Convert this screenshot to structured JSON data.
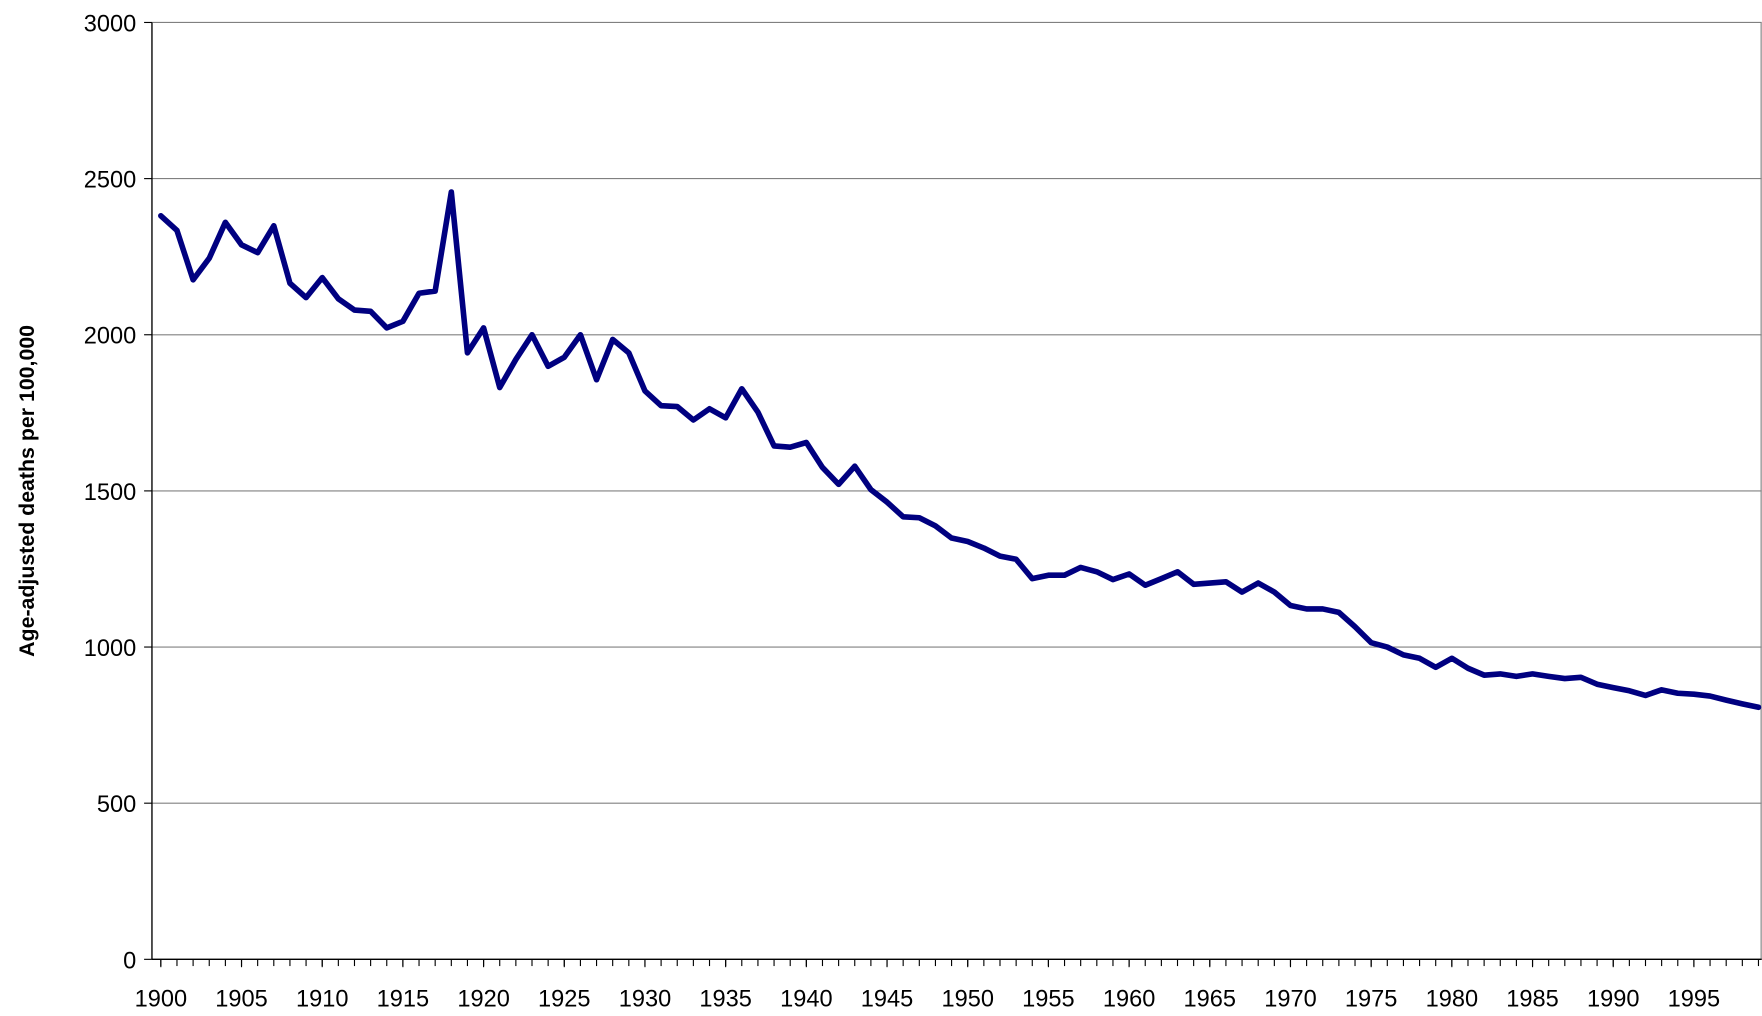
{
  "chart_data": {
    "type": "line",
    "y_label": "Age-adjusted deaths per 100,000",
    "color": "#000080",
    "grid": true,
    "x": [
      1900,
      1901,
      1902,
      1903,
      1904,
      1905,
      1906,
      1907,
      1908,
      1909,
      1910,
      1911,
      1912,
      1913,
      1914,
      1915,
      1916,
      1917,
      1918,
      1919,
      1920,
      1921,
      1922,
      1923,
      1924,
      1925,
      1926,
      1927,
      1928,
      1929,
      1930,
      1931,
      1932,
      1933,
      1934,
      1935,
      1936,
      1937,
      1938,
      1939,
      1940,
      1941,
      1942,
      1943,
      1944,
      1945,
      1946,
      1947,
      1948,
      1949,
      1950,
      1951,
      1952,
      1953,
      1954,
      1955,
      1956,
      1957,
      1958,
      1959,
      1960,
      1961,
      1962,
      1963,
      1964,
      1965,
      1966,
      1967,
      1968,
      1969,
      1970,
      1971,
      1972,
      1973,
      1974,
      1975,
      1976,
      1977,
      1978,
      1979,
      1980,
      1981,
      1982,
      1983,
      1984,
      1985,
      1986,
      1987,
      1988,
      1989,
      1990,
      1991,
      1992,
      1993,
      1994,
      1995,
      1996,
      1997,
      1998,
      1999
    ],
    "values": [
      2381,
      2334,
      2176,
      2245,
      2360,
      2288,
      2263,
      2349,
      2165,
      2119,
      2183,
      2115,
      2079,
      2075,
      2022,
      2043,
      2133,
      2140,
      2457,
      1942,
      2022,
      1831,
      1921,
      2000,
      1899,
      1928,
      2000,
      1856,
      1985,
      1942,
      1820,
      1773,
      1770,
      1727,
      1763,
      1734,
      1827,
      1752,
      1644,
      1640,
      1655,
      1575,
      1521,
      1579,
      1504,
      1464,
      1417,
      1414,
      1388,
      1349,
      1338,
      1317,
      1291,
      1281,
      1219,
      1230,
      1230,
      1255,
      1241,
      1216,
      1234,
      1198,
      1219,
      1241,
      1201,
      1205,
      1209,
      1176,
      1205,
      1176,
      1133,
      1122,
      1122,
      1111,
      1065,
      1014,
      1000,
      975,
      964,
      935,
      964,
      932,
      910,
      914,
      906,
      914,
      906,
      899,
      903,
      881,
      870,
      860,
      845,
      863,
      852,
      849,
      843,
      830,
      818,
      807
    ],
    "xlim": [
      1899.45,
      1999.2
    ],
    "xticks": [
      1900,
      1905,
      1910,
      1915,
      1920,
      1925,
      1930,
      1935,
      1940,
      1945,
      1950,
      1955,
      1960,
      1965,
      1970,
      1975,
      1980,
      1985,
      1990,
      1995
    ],
    "ylim": [
      0,
      3000
    ],
    "yticks": [
      0,
      500,
      1000,
      1500,
      2000,
      2500,
      3000
    ]
  }
}
